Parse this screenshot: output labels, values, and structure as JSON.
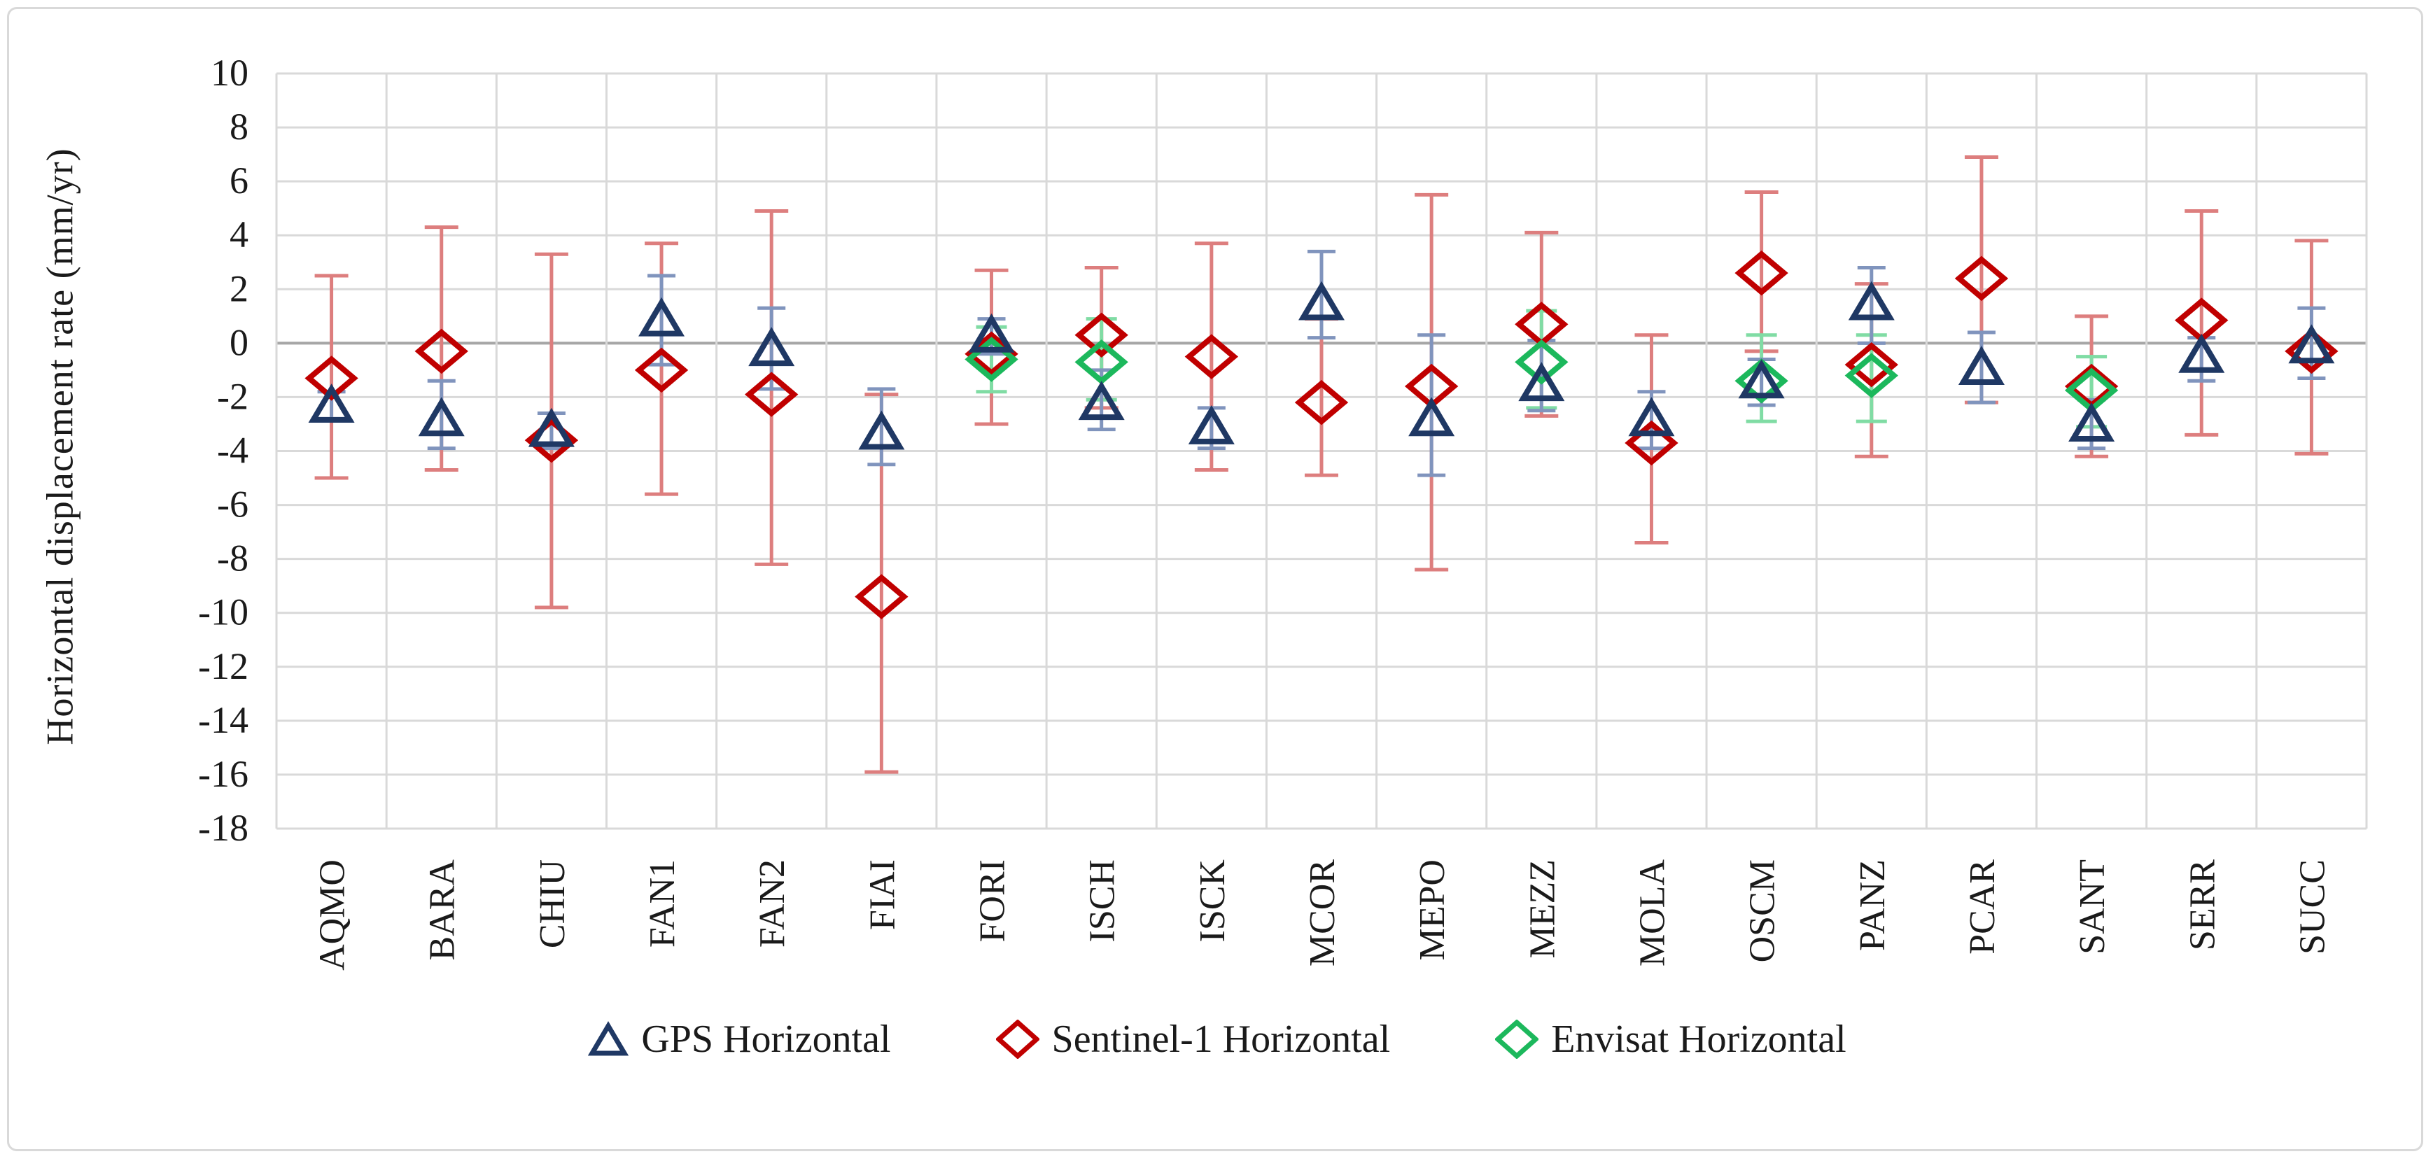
{
  "chart": {
    "y_axis_title": "Horizontal displacement rate (mm/yr)",
    "y_ticks": [
      10,
      8,
      6,
      4,
      2,
      0,
      -2,
      -4,
      -6,
      -8,
      -10,
      -12,
      -14,
      -16,
      -18
    ],
    "colors": {
      "gps": "#1F3864",
      "gps_error": "#8094BD",
      "sentinel": "#C00000",
      "sentinel_error": "#DD7E7E",
      "envisat": "#1CB85C",
      "envisat_error": "#80DCA4",
      "gridline": "#D9D9D9",
      "zero_line": "#A6A6A6",
      "text": "#1A1A1A",
      "frame_border": "#D9D9D9"
    }
  },
  "chart_data": {
    "type": "scatter",
    "title": "",
    "xlabel": "",
    "ylabel": "Horizontal displacement rate (mm/yr)",
    "ylim": [
      -18,
      10
    ],
    "grid": true,
    "legend_position": "bottom",
    "categories": [
      "AQMO",
      "BARA",
      "CHIU",
      "FAN1",
      "FAN2",
      "FIAI",
      "FORI",
      "ISCH",
      "ISCK",
      "MCOR",
      "MEPO",
      "MEZZ",
      "MOLA",
      "OSCM",
      "PANZ",
      "PCAR",
      "SANT",
      "SERR",
      "SUCC"
    ],
    "series": [
      {
        "name": "GPS Horizontal",
        "marker": "triangle",
        "values": [
          -2.3,
          -2.8,
          -3.2,
          0.9,
          -0.2,
          -3.3,
          0.3,
          -2.2,
          -3.1,
          1.5,
          -2.8,
          -1.5,
          -2.8,
          -1.4,
          1.5,
          -0.9,
          -3.0,
          -0.45,
          -0.1
        ],
        "err_low": [
          -2.8,
          -3.9,
          -3.9,
          -0.8,
          -1.7,
          -4.5,
          -0.4,
          -3.2,
          -3.9,
          0.2,
          -4.9,
          -2.5,
          -3.9,
          -2.3,
          0.0,
          -2.2,
          -3.9,
          -1.4,
          -1.3
        ],
        "err_high": [
          -1.8,
          -1.4,
          -2.6,
          2.5,
          1.3,
          -1.7,
          0.9,
          -1.0,
          -2.4,
          3.4,
          0.3,
          0.1,
          -1.8,
          -0.6,
          2.8,
          0.4,
          -2.1,
          0.2,
          1.3
        ]
      },
      {
        "name": "Sentinel-1 Horizontal",
        "marker": "diamond",
        "values": [
          -1.3,
          -0.3,
          -3.6,
          -1.0,
          -1.9,
          -9.4,
          -0.4,
          0.3,
          -0.5,
          -2.2,
          -1.6,
          0.7,
          -3.7,
          2.6,
          -0.8,
          2.4,
          -1.6,
          0.85,
          -0.3
        ],
        "err_low": [
          -5.0,
          -4.7,
          -9.8,
          -5.6,
          -8.2,
          -15.9,
          -3.0,
          -2.4,
          -4.7,
          -4.9,
          -8.4,
          -2.7,
          -7.4,
          -0.3,
          -4.2,
          -2.2,
          -4.2,
          -3.4,
          -4.1
        ],
        "err_high": [
          2.5,
          4.3,
          3.3,
          3.7,
          4.9,
          -1.9,
          2.7,
          2.8,
          3.7,
          0.9,
          5.5,
          4.1,
          0.3,
          5.6,
          2.2,
          6.9,
          1.0,
          4.9,
          3.8
        ]
      },
      {
        "name": "Envisat Horizontal",
        "marker": "diamond",
        "values": [
          null,
          null,
          null,
          null,
          null,
          null,
          -0.6,
          -0.7,
          null,
          null,
          null,
          -0.7,
          null,
          -1.4,
          -1.2,
          null,
          -1.75,
          null,
          null
        ],
        "err_low": [
          null,
          null,
          null,
          null,
          null,
          null,
          -1.8,
          -2.1,
          null,
          null,
          null,
          -2.4,
          null,
          -2.9,
          -2.9,
          null,
          -3.1,
          null,
          null
        ],
        "err_high": [
          null,
          null,
          null,
          null,
          null,
          null,
          0.6,
          0.9,
          null,
          null,
          null,
          1.2,
          null,
          0.3,
          0.3,
          null,
          -0.5,
          null,
          null
        ]
      }
    ]
  }
}
